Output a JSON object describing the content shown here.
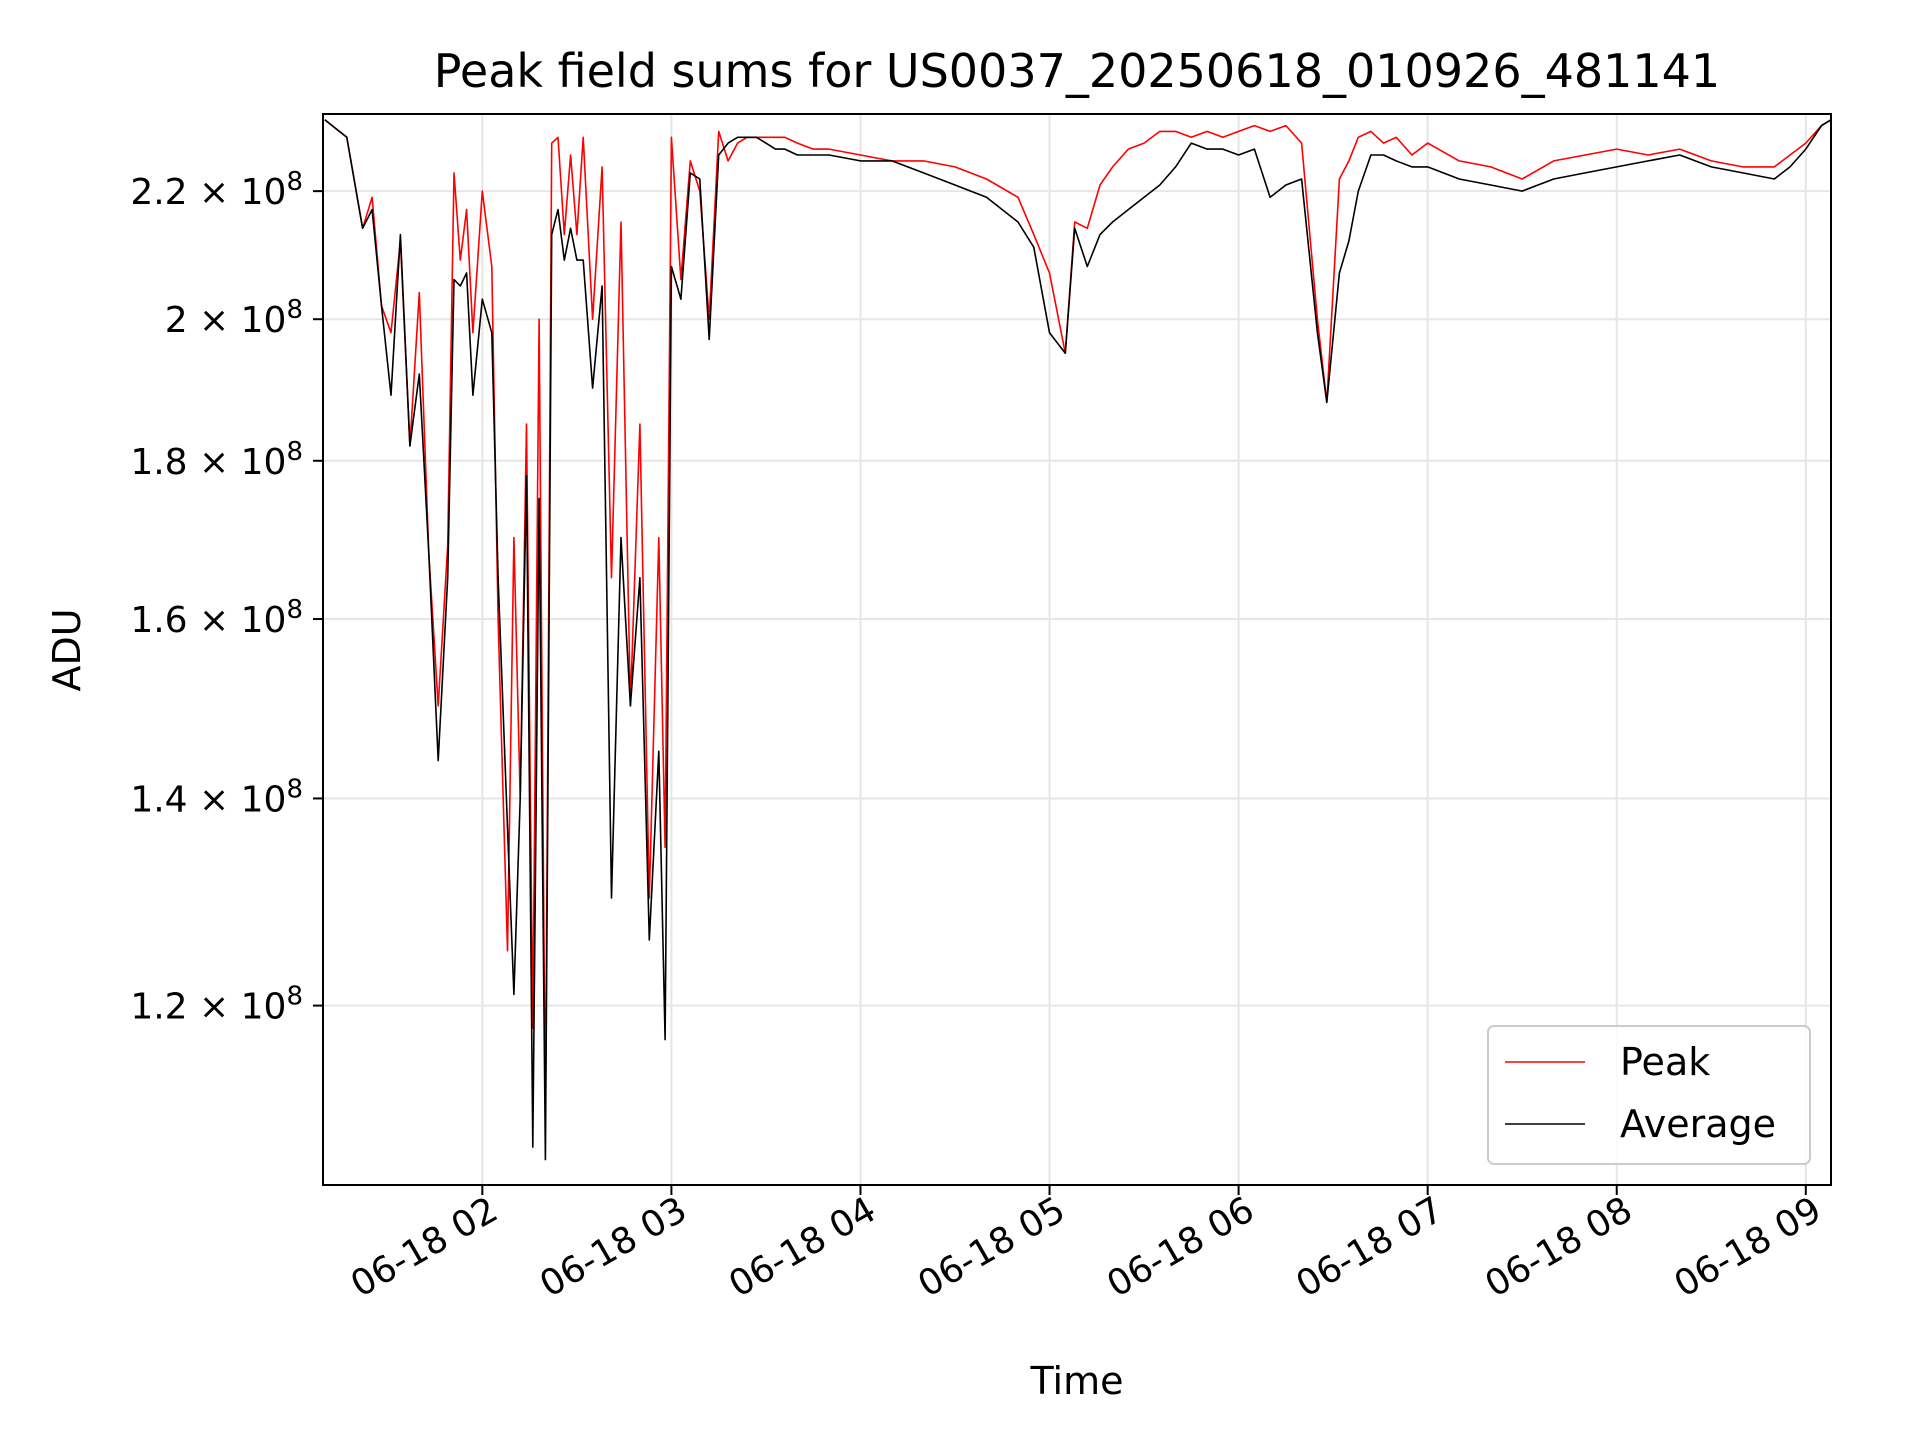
{
  "chart_data": {
    "type": "line",
    "title": "Peak field sums for US0037_20250618_010926_481141",
    "xlabel": "Time",
    "ylabel": "ADU",
    "xlim": [
      "2025-06-18T01:09:26",
      "2025-06-18T09:08:00"
    ],
    "ylim": [
      105000000,
      233000000
    ],
    "yscale": "log",
    "grid": true,
    "legend_position": "bottom-right",
    "x_ticks": [
      "06-18 02",
      "06-18 03",
      "06-18 04",
      "06-18 05",
      "06-18 06",
      "06-18 07",
      "06-18 08",
      "06-18 09"
    ],
    "y_ticks": [
      {
        "value": 120000000,
        "mantissa": "1.2",
        "exponent": "8"
      },
      {
        "value": 140000000,
        "mantissa": "1.4",
        "exponent": "8"
      },
      {
        "value": 160000000,
        "mantissa": "1.6",
        "exponent": "8"
      },
      {
        "value": 180000000,
        "mantissa": "1.8",
        "exponent": "8"
      },
      {
        "value": 200000000,
        "mantissa": "2",
        "exponent": "8"
      },
      {
        "value": 220000000,
        "mantissa": "2.2",
        "exponent": "8"
      }
    ],
    "series": [
      {
        "name": "Peak",
        "color": "#ff0000",
        "x": [
          "2025-06-18T01:10",
          "2025-06-18T01:17",
          "2025-06-18T01:22",
          "2025-06-18T01:25",
          "2025-06-18T01:28",
          "2025-06-18T01:31",
          "2025-06-18T01:34",
          "2025-06-18T01:37",
          "2025-06-18T01:40",
          "2025-06-18T01:43",
          "2025-06-18T01:46",
          "2025-06-18T01:49",
          "2025-06-18T01:51",
          "2025-06-18T01:53",
          "2025-06-18T01:55",
          "2025-06-18T01:57",
          "2025-06-18T02:00",
          "2025-06-18T02:03",
          "2025-06-18T02:05",
          "2025-06-18T02:08",
          "2025-06-18T02:10",
          "2025-06-18T02:12",
          "2025-06-18T02:14",
          "2025-06-18T02:16",
          "2025-06-18T02:18",
          "2025-06-18T02:20",
          "2025-06-18T02:22",
          "2025-06-18T02:24",
          "2025-06-18T02:26",
          "2025-06-18T02:28",
          "2025-06-18T02:30",
          "2025-06-18T02:32",
          "2025-06-18T02:35",
          "2025-06-18T02:38",
          "2025-06-18T02:41",
          "2025-06-18T02:44",
          "2025-06-18T02:47",
          "2025-06-18T02:50",
          "2025-06-18T02:53",
          "2025-06-18T02:56",
          "2025-06-18T02:58",
          "2025-06-18T03:00",
          "2025-06-18T03:03",
          "2025-06-18T03:06",
          "2025-06-18T03:09",
          "2025-06-18T03:12",
          "2025-06-18T03:15",
          "2025-06-18T03:18",
          "2025-06-18T03:21",
          "2025-06-18T03:24",
          "2025-06-18T03:27",
          "2025-06-18T03:30",
          "2025-06-18T03:33",
          "2025-06-18T03:36",
          "2025-06-18T03:40",
          "2025-06-18T03:45",
          "2025-06-18T03:50",
          "2025-06-18T04:00",
          "2025-06-18T04:10",
          "2025-06-18T04:20",
          "2025-06-18T04:30",
          "2025-06-18T04:40",
          "2025-06-18T04:50",
          "2025-06-18T04:55",
          "2025-06-18T05:00",
          "2025-06-18T05:05",
          "2025-06-18T05:08",
          "2025-06-18T05:12",
          "2025-06-18T05:16",
          "2025-06-18T05:20",
          "2025-06-18T05:25",
          "2025-06-18T05:30",
          "2025-06-18T05:35",
          "2025-06-18T05:40",
          "2025-06-18T05:45",
          "2025-06-18T05:50",
          "2025-06-18T05:55",
          "2025-06-18T06:00",
          "2025-06-18T06:05",
          "2025-06-18T06:10",
          "2025-06-18T06:15",
          "2025-06-18T06:20",
          "2025-06-18T06:25",
          "2025-06-18T06:28",
          "2025-06-18T06:32",
          "2025-06-18T06:35",
          "2025-06-18T06:38",
          "2025-06-18T06:42",
          "2025-06-18T06:46",
          "2025-06-18T06:50",
          "2025-06-18T06:55",
          "2025-06-18T07:00",
          "2025-06-18T07:10",
          "2025-06-18T07:20",
          "2025-06-18T07:30",
          "2025-06-18T07:40",
          "2025-06-18T07:50",
          "2025-06-18T08:00",
          "2025-06-18T08:10",
          "2025-06-18T08:20",
          "2025-06-18T08:30",
          "2025-06-18T08:40",
          "2025-06-18T08:50",
          "2025-06-18T08:55",
          "2025-06-18T09:00",
          "2025-06-18T09:05",
          "2025-06-18T09:08"
        ],
        "y": [
          232000000,
          229000000,
          214000000,
          219000000,
          202000000,
          198000000,
          212000000,
          182000000,
          204000000,
          168000000,
          150000000,
          169000000,
          223000000,
          209000000,
          217000000,
          198000000,
          220000000,
          208000000,
          160000000,
          125000000,
          170000000,
          140000000,
          185000000,
          118000000,
          200000000,
          110000000,
          228000000,
          229000000,
          213000000,
          226000000,
          213000000,
          229000000,
          200000000,
          224000000,
          165000000,
          215000000,
          150000000,
          185000000,
          130000000,
          170000000,
          135000000,
          229000000,
          206000000,
          225000000,
          220000000,
          200000000,
          230000000,
          225000000,
          228000000,
          229000000,
          229000000,
          229000000,
          229000000,
          229000000,
          228000000,
          227000000,
          227000000,
          226000000,
          225000000,
          225000000,
          224000000,
          222000000,
          219000000,
          213000000,
          207000000,
          195000000,
          215000000,
          214000000,
          221000000,
          224000000,
          227000000,
          228000000,
          230000000,
          230000000,
          229000000,
          230000000,
          229000000,
          230000000,
          231000000,
          230000000,
          231000000,
          228000000,
          200000000,
          188000000,
          222000000,
          225000000,
          229000000,
          230000000,
          228000000,
          229000000,
          226000000,
          228000000,
          225000000,
          224000000,
          222000000,
          225000000,
          226000000,
          227000000,
          226000000,
          227000000,
          225000000,
          224000000,
          224000000,
          226000000,
          228000000,
          231000000,
          232000000
        ]
      },
      {
        "name": "Average",
        "color": "#000000",
        "x": [
          "2025-06-18T01:10",
          "2025-06-18T01:17",
          "2025-06-18T01:22",
          "2025-06-18T01:25",
          "2025-06-18T01:28",
          "2025-06-18T01:31",
          "2025-06-18T01:34",
          "2025-06-18T01:37",
          "2025-06-18T01:40",
          "2025-06-18T01:43",
          "2025-06-18T01:46",
          "2025-06-18T01:49",
          "2025-06-18T01:51",
          "2025-06-18T01:53",
          "2025-06-18T01:55",
          "2025-06-18T01:57",
          "2025-06-18T02:00",
          "2025-06-18T02:03",
          "2025-06-18T02:05",
          "2025-06-18T02:08",
          "2025-06-18T02:10",
          "2025-06-18T02:12",
          "2025-06-18T02:14",
          "2025-06-18T02:16",
          "2025-06-18T02:18",
          "2025-06-18T02:20",
          "2025-06-18T02:22",
          "2025-06-18T02:24",
          "2025-06-18T02:26",
          "2025-06-18T02:28",
          "2025-06-18T02:30",
          "2025-06-18T02:32",
          "2025-06-18T02:35",
          "2025-06-18T02:38",
          "2025-06-18T02:41",
          "2025-06-18T02:44",
          "2025-06-18T02:47",
          "2025-06-18T02:50",
          "2025-06-18T02:53",
          "2025-06-18T02:56",
          "2025-06-18T02:58",
          "2025-06-18T03:00",
          "2025-06-18T03:03",
          "2025-06-18T03:06",
          "2025-06-18T03:09",
          "2025-06-18T03:12",
          "2025-06-18T03:15",
          "2025-06-18T03:18",
          "2025-06-18T03:21",
          "2025-06-18T03:24",
          "2025-06-18T03:27",
          "2025-06-18T03:30",
          "2025-06-18T03:33",
          "2025-06-18T03:36",
          "2025-06-18T03:40",
          "2025-06-18T03:45",
          "2025-06-18T03:50",
          "2025-06-18T04:00",
          "2025-06-18T04:10",
          "2025-06-18T04:20",
          "2025-06-18T04:30",
          "2025-06-18T04:40",
          "2025-06-18T04:50",
          "2025-06-18T04:55",
          "2025-06-18T05:00",
          "2025-06-18T05:05",
          "2025-06-18T05:08",
          "2025-06-18T05:12",
          "2025-06-18T05:16",
          "2025-06-18T05:20",
          "2025-06-18T05:25",
          "2025-06-18T05:30",
          "2025-06-18T05:35",
          "2025-06-18T05:40",
          "2025-06-18T05:45",
          "2025-06-18T05:50",
          "2025-06-18T05:55",
          "2025-06-18T06:00",
          "2025-06-18T06:05",
          "2025-06-18T06:10",
          "2025-06-18T06:15",
          "2025-06-18T06:20",
          "2025-06-18T06:25",
          "2025-06-18T06:28",
          "2025-06-18T06:32",
          "2025-06-18T06:35",
          "2025-06-18T06:38",
          "2025-06-18T06:42",
          "2025-06-18T06:46",
          "2025-06-18T06:50",
          "2025-06-18T06:55",
          "2025-06-18T07:00",
          "2025-06-18T07:10",
          "2025-06-18T07:20",
          "2025-06-18T07:30",
          "2025-06-18T07:40",
          "2025-06-18T07:50",
          "2025-06-18T08:00",
          "2025-06-18T08:10",
          "2025-06-18T08:20",
          "2025-06-18T08:30",
          "2025-06-18T08:40",
          "2025-06-18T08:50",
          "2025-06-18T08:55",
          "2025-06-18T09:00",
          "2025-06-18T09:05",
          "2025-06-18T09:08"
        ],
        "y": [
          232000000,
          229000000,
          214000000,
          217000000,
          202000000,
          189000000,
          213000000,
          182000000,
          192000000,
          168000000,
          144000000,
          165000000,
          206000000,
          205000000,
          207000000,
          189000000,
          203000000,
          198000000,
          165000000,
          137000000,
          121000000,
          140000000,
          178000000,
          108000000,
          175000000,
          107000000,
          213000000,
          217000000,
          209000000,
          214000000,
          209000000,
          209000000,
          190000000,
          205000000,
          130000000,
          170000000,
          150000000,
          165000000,
          126000000,
          145000000,
          117000000,
          208000000,
          203000000,
          223000000,
          222000000,
          197000000,
          226000000,
          228000000,
          229000000,
          229000000,
          229000000,
          228000000,
          227000000,
          227000000,
          226000000,
          226000000,
          226000000,
          225000000,
          225000000,
          223000000,
          221000000,
          219000000,
          215000000,
          211000000,
          198000000,
          195000000,
          214000000,
          208000000,
          213000000,
          215000000,
          217000000,
          219000000,
          221000000,
          224000000,
          228000000,
          227000000,
          227000000,
          226000000,
          227000000,
          219000000,
          221000000,
          222000000,
          198000000,
          188000000,
          207000000,
          212000000,
          220000000,
          226000000,
          226000000,
          225000000,
          224000000,
          224000000,
          222000000,
          221000000,
          220000000,
          222000000,
          223000000,
          224000000,
          225000000,
          226000000,
          224000000,
          223000000,
          222000000,
          224000000,
          227000000,
          231000000,
          232000000
        ]
      }
    ]
  }
}
